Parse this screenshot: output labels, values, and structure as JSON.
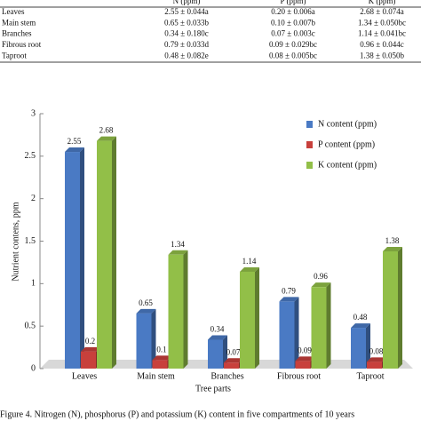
{
  "table": {
    "columns": [
      "N (ppm)",
      "P (ppm)",
      "K (ppm)"
    ],
    "rows": [
      [
        "Leaves",
        "2.55 ± 0.044a",
        "0.20 ± 0.006a",
        "2.68 ± 0.074a"
      ],
      [
        "Main stem",
        "0.65 ± 0.033b",
        "0.10 ± 0.007b",
        "1.34 ± 0.050bc"
      ],
      [
        "Branches",
        "0.34 ± 0.180c",
        "0.07 ± 0.003c",
        "1.14 ± 0.041bc"
      ],
      [
        "Fibrous root",
        "0.79 ± 0.033d",
        "0.09 ± 0.029bc",
        "0.96 ± 0.044c"
      ],
      [
        "Taproot",
        "0.48 ± 0.082e",
        "0.08 ± 0.005bc",
        "1.38 ± 0.050b"
      ]
    ]
  },
  "chart_data": {
    "type": "bar",
    "xlabel": "Tree parts",
    "ylabel": "Nutrient contens, ppm",
    "categories": [
      "Leaves",
      "Main stem",
      "Branches",
      "Fibrous root",
      "Taproot"
    ],
    "series": [
      {
        "name": "N content (ppm)",
        "color": "#4a7ac4",
        "values": [
          2.55,
          0.65,
          0.34,
          0.79,
          0.48
        ]
      },
      {
        "name": "P content (ppm)",
        "color": "#c8403c",
        "values": [
          0.2,
          0.1,
          0.07,
          0.09,
          0.08
        ]
      },
      {
        "name": "K content (ppm)",
        "color": "#92bf48",
        "values": [
          2.68,
          1.34,
          1.14,
          0.96,
          1.38
        ]
      }
    ],
    "ylim": [
      0,
      3
    ],
    "yticks": [
      0,
      0.5,
      1,
      1.5,
      2,
      2.5,
      3
    ],
    "legend": "upper right"
  },
  "caption": "Figure 4.    Nitrogen (N), phosphorus (P) and potassium (K) content in five compartments of 10 years"
}
